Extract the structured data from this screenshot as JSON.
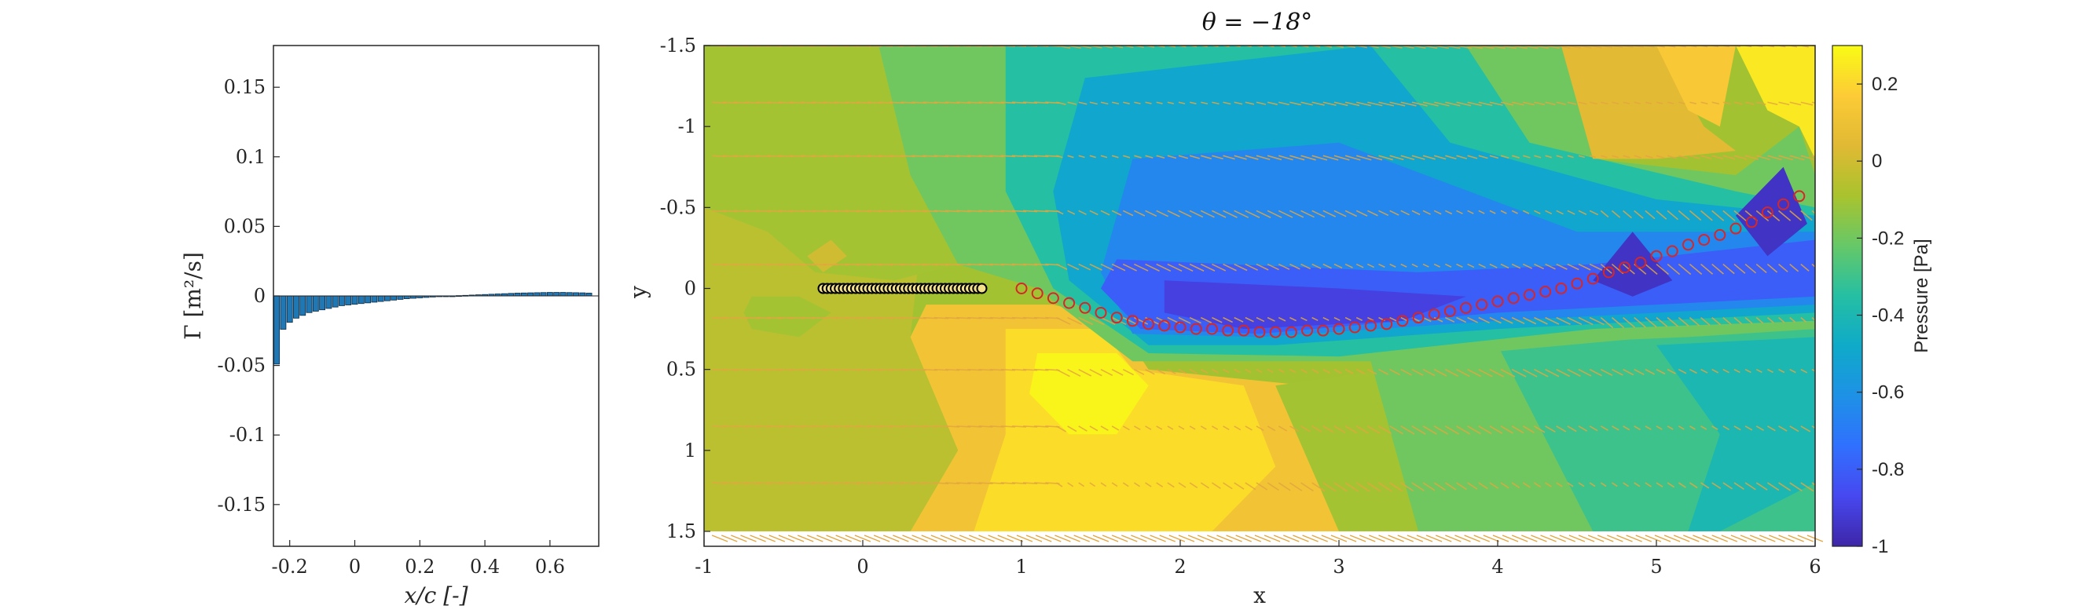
{
  "chart_data": [
    {
      "type": "bar",
      "xlabel": "x/c [-]",
      "ylabel": "Γ [m²/s]",
      "xlim": [
        -0.25,
        0.75
      ],
      "ylim": [
        -0.18,
        0.18
      ],
      "xticks": [
        "-0.2",
        "0",
        "0.2",
        "0.4",
        "0.6"
      ],
      "xtick_values": [
        -0.2,
        0,
        0.2,
        0.4,
        0.6
      ],
      "yticks": [
        "0.15",
        "0.1",
        "0.05",
        "0",
        "-0.05",
        "-0.1",
        "-0.15"
      ],
      "ytick_values": [
        0.15,
        0.1,
        0.05,
        0,
        -0.05,
        -0.1,
        -0.15
      ],
      "bar_color": "#1f77b4",
      "x": [
        -0.24,
        -0.22,
        -0.2,
        -0.18,
        -0.16,
        -0.14,
        -0.12,
        -0.1,
        -0.08,
        -0.06,
        -0.04,
        -0.02,
        0,
        0.02,
        0.04,
        0.06,
        0.08,
        0.1,
        0.12,
        0.14,
        0.16,
        0.18,
        0.2,
        0.22,
        0.24,
        0.26,
        0.28,
        0.3,
        0.32,
        0.34,
        0.36,
        0.38,
        0.4,
        0.42,
        0.44,
        0.46,
        0.48,
        0.5,
        0.52,
        0.54,
        0.56,
        0.58,
        0.6,
        0.62,
        0.64,
        0.66,
        0.68,
        0.7,
        0.72
      ],
      "values": [
        -0.049,
        -0.024,
        -0.019,
        -0.016,
        -0.014,
        -0.012,
        -0.011,
        -0.01,
        -0.009,
        -0.008,
        -0.007,
        -0.0065,
        -0.006,
        -0.0055,
        -0.005,
        -0.0045,
        -0.004,
        -0.0035,
        -0.003,
        -0.0025,
        -0.002,
        -0.0017,
        -0.0014,
        -0.0011,
        -0.0008,
        -0.0005,
        -0.0002,
        0,
        0.0002,
        0.0004,
        0.0006,
        0.0008,
        0.001,
        0.0012,
        0.0014,
        0.0016,
        0.0018,
        0.002,
        0.0021,
        0.0022,
        0.0023,
        0.0024,
        0.0025,
        0.0025,
        0.0025,
        0.0024,
        0.0023,
        0.0022,
        0.002
      ]
    },
    {
      "type": "contour",
      "title": "θ = −18°",
      "xlabel": "x",
      "ylabel": "y",
      "xlim": [
        -1,
        6
      ],
      "ylim": [
        -1.5,
        1.5
      ],
      "y_reversed": true,
      "xticks": [
        "-1",
        "0",
        "1",
        "2",
        "3",
        "4",
        "5",
        "6"
      ],
      "xtick_values": [
        -1,
        0,
        1,
        2,
        3,
        4,
        5,
        6
      ],
      "yticks": [
        "-1.5",
        "-1",
        "-0.5",
        "0",
        "0.5",
        "1",
        "1.5"
      ],
      "ytick_values": [
        -1.5,
        -1,
        -0.5,
        0,
        0.5,
        1,
        1.5
      ],
      "colorbar": {
        "label": "Pressure [Pa]",
        "range": [
          -1,
          0.3
        ],
        "ticks": [
          "0.2",
          "0",
          "-0.2",
          "-0.4",
          "-0.6",
          "-0.8",
          "-1"
        ],
        "tick_values": [
          0.2,
          0,
          -0.2,
          -0.4,
          -0.6,
          -0.8,
          -1
        ]
      },
      "plate": {
        "x_start": -0.25,
        "x_end": 0.75,
        "y": 0,
        "marker_color": "#000000",
        "fill_color": "#f2e08a"
      },
      "wake_markers": {
        "color": "#d62728",
        "x": [
          1.0,
          1.1,
          1.2,
          1.3,
          1.4,
          1.5,
          1.6,
          1.7,
          1.8,
          1.9,
          2.0,
          2.1,
          2.2,
          2.3,
          2.4,
          2.5,
          2.6,
          2.7,
          2.8,
          2.9,
          3.0,
          3.1,
          3.2,
          3.3,
          3.4,
          3.5,
          3.6,
          3.7,
          3.8,
          3.9,
          4.0,
          4.1,
          4.2,
          4.3,
          4.4,
          4.5,
          4.6,
          4.7,
          4.8,
          4.9,
          5.0,
          5.1,
          5.2,
          5.3,
          5.4,
          5.5,
          5.6,
          5.7,
          5.8,
          5.9
        ],
        "y": [
          0.0,
          0.03,
          0.06,
          0.09,
          0.12,
          0.15,
          0.18,
          0.2,
          0.22,
          0.23,
          0.24,
          0.25,
          0.25,
          0.26,
          0.26,
          0.27,
          0.27,
          0.27,
          0.26,
          0.26,
          0.25,
          0.24,
          0.23,
          0.22,
          0.2,
          0.18,
          0.16,
          0.14,
          0.12,
          0.1,
          0.08,
          0.06,
          0.04,
          0.02,
          0.0,
          -0.03,
          -0.06,
          -0.1,
          -0.13,
          -0.16,
          -0.2,
          -0.23,
          -0.27,
          -0.3,
          -0.33,
          -0.37,
          -0.41,
          -0.47,
          -0.52,
          -0.57
        ]
      },
      "field_regions": [
        {
          "level": -0.05,
          "polygon": [
            [
              -1,
              -1.5
            ],
            [
              0.1,
              -1.5
            ],
            [
              0.4,
              -0.6
            ],
            [
              0.3,
              0.3
            ],
            [
              0.6,
              1.0
            ],
            [
              0.3,
              1.5
            ],
            [
              -1,
              1.5
            ]
          ]
        },
        {
          "level": -0.1,
          "polygon": [
            [
              -1,
              -1.5
            ],
            [
              0.1,
              -1.5
            ],
            [
              0.3,
              -0.7
            ],
            [
              0.6,
              -0.15
            ],
            [
              0.2,
              -0.05
            ],
            [
              -0.3,
              -0.1
            ],
            [
              -0.6,
              -0.35
            ],
            [
              -1,
              -0.5
            ]
          ]
        },
        {
          "level": -0.1,
          "polygon": [
            [
              -0.7,
              0.05
            ],
            [
              -0.4,
              0.05
            ],
            [
              -0.2,
              0.15
            ],
            [
              -0.4,
              0.3
            ],
            [
              -0.7,
              0.25
            ],
            [
              -0.75,
              0.15
            ]
          ]
        },
        {
          "level": 0.0,
          "polygon": [
            [
              -0.35,
              -0.2
            ],
            [
              -0.2,
              -0.3
            ],
            [
              -0.1,
              -0.2
            ],
            [
              -0.25,
              -0.1
            ]
          ]
        },
        {
          "level": 0.12,
          "polygon": [
            [
              0.4,
              0.1
            ],
            [
              1.2,
              0.1
            ],
            [
              1.6,
              0.2
            ],
            [
              1.8,
              0.5
            ],
            [
              2.8,
              0.6
            ],
            [
              3.1,
              1.5
            ],
            [
              0.3,
              1.5
            ],
            [
              0.6,
              1.0
            ],
            [
              0.3,
              0.3
            ]
          ]
        },
        {
          "level": 0.22,
          "polygon": [
            [
              0.9,
              0.25
            ],
            [
              1.5,
              0.25
            ],
            [
              1.7,
              0.5
            ],
            [
              2.4,
              0.6
            ],
            [
              2.6,
              1.1
            ],
            [
              2.2,
              1.5
            ],
            [
              0.7,
              1.5
            ],
            [
              0.9,
              0.9
            ]
          ]
        },
        {
          "level": 0.28,
          "polygon": [
            [
              1.1,
              0.4
            ],
            [
              1.6,
              0.4
            ],
            [
              1.8,
              0.6
            ],
            [
              1.6,
              0.9
            ],
            [
              1.3,
              0.9
            ],
            [
              1.05,
              0.65
            ]
          ]
        },
        {
          "level": -0.1,
          "polygon": [
            [
              2.6,
              0.6
            ],
            [
              3.3,
              0.5
            ],
            [
              3.6,
              1.5
            ],
            [
              3.0,
              1.5
            ]
          ]
        },
        {
          "level": -0.2,
          "polygon": [
            [
              3.2,
              0.45
            ],
            [
              4.2,
              0.3
            ],
            [
              5.0,
              0.3
            ],
            [
              6,
              0.2
            ],
            [
              6,
              1.5
            ],
            [
              3.5,
              1.5
            ]
          ]
        },
        {
          "level": -0.3,
          "polygon": [
            [
              4.0,
              0.35
            ],
            [
              5.2,
              0.3
            ],
            [
              6,
              0.25
            ],
            [
              6,
              1.5
            ],
            [
              4.6,
              1.5
            ]
          ]
        },
        {
          "level": -0.4,
          "polygon": [
            [
              5.0,
              0.35
            ],
            [
              6,
              0.3
            ],
            [
              6,
              1.2
            ],
            [
              5.4,
              1.5
            ],
            [
              5.2,
              1.5
            ],
            [
              5.4,
              0.9
            ]
          ]
        },
        {
          "level": -0.2,
          "polygon": [
            [
              0.1,
              -1.5
            ],
            [
              4.4,
              -1.5
            ],
            [
              4.6,
              -0.8
            ],
            [
              5.5,
              -0.7
            ],
            [
              5.9,
              -1.0
            ],
            [
              6,
              -0.7
            ],
            [
              6,
              0.25
            ],
            [
              5.0,
              0.3
            ],
            [
              3.3,
              0.45
            ],
            [
              1.7,
              0.45
            ],
            [
              1.1,
              0.0
            ],
            [
              0.6,
              -0.15
            ],
            [
              0.3,
              -0.7
            ]
          ]
        },
        {
          "level": -0.35,
          "polygon": [
            [
              0.9,
              -1.5
            ],
            [
              3.8,
              -1.5
            ],
            [
              4.2,
              -0.9
            ],
            [
              5.5,
              -0.6
            ],
            [
              6,
              -0.5
            ],
            [
              6,
              0.2
            ],
            [
              4.6,
              0.25
            ],
            [
              3.0,
              0.42
            ],
            [
              1.8,
              0.4
            ],
            [
              1.2,
              0.0
            ],
            [
              0.9,
              -0.6
            ]
          ]
        },
        {
          "level": -0.5,
          "polygon": [
            [
              1.4,
              -1.3
            ],
            [
              3.2,
              -1.5
            ],
            [
              3.7,
              -0.9
            ],
            [
              5.0,
              -0.55
            ],
            [
              6,
              -0.45
            ],
            [
              6,
              0.15
            ],
            [
              4.0,
              0.25
            ],
            [
              2.6,
              0.35
            ],
            [
              1.8,
              0.35
            ],
            [
              1.3,
              -0.05
            ],
            [
              1.2,
              -0.6
            ]
          ]
        },
        {
          "level": -0.65,
          "polygon": [
            [
              1.7,
              -0.8
            ],
            [
              3.0,
              -0.9
            ],
            [
              4.5,
              -0.35
            ],
            [
              6,
              -0.35
            ],
            [
              6,
              0.1
            ],
            [
              4.0,
              0.2
            ],
            [
              2.5,
              0.3
            ],
            [
              1.7,
              0.28
            ],
            [
              1.5,
              -0.1
            ]
          ]
        },
        {
          "level": -0.8,
          "polygon": [
            [
              1.6,
              -0.18
            ],
            [
              3.5,
              -0.1
            ],
            [
              4.6,
              -0.15
            ],
            [
              6,
              -0.3
            ],
            [
              6,
              0.05
            ],
            [
              4.0,
              0.15
            ],
            [
              2.5,
              0.28
            ],
            [
              1.75,
              0.25
            ],
            [
              1.5,
              0.0
            ]
          ]
        },
        {
          "level": -0.9,
          "polygon": [
            [
              1.9,
              -0.05
            ],
            [
              3.0,
              0.0
            ],
            [
              3.8,
              0.05
            ],
            [
              3.4,
              0.2
            ],
            [
              2.4,
              0.25
            ],
            [
              1.9,
              0.15
            ]
          ]
        },
        {
          "level": -0.95,
          "polygon": [
            [
              4.6,
              -0.05
            ],
            [
              4.85,
              -0.35
            ],
            [
              5.1,
              -0.05
            ],
            [
              4.85,
              0.05
            ]
          ]
        },
        {
          "level": -0.95,
          "polygon": [
            [
              5.5,
              -0.45
            ],
            [
              5.8,
              -0.75
            ],
            [
              5.95,
              -0.4
            ],
            [
              5.7,
              -0.2
            ]
          ]
        },
        {
          "level": 0.05,
          "polygon": [
            [
              4.4,
              -1.5
            ],
            [
              5.0,
              -1.5
            ],
            [
              5.3,
              -1.0
            ],
            [
              5.5,
              -0.85
            ],
            [
              5.0,
              -0.8
            ],
            [
              4.6,
              -0.8
            ]
          ]
        },
        {
          "level": 0.15,
          "polygon": [
            [
              5.0,
              -1.5
            ],
            [
              5.5,
              -1.5
            ],
            [
              5.4,
              -1.0
            ],
            [
              5.2,
              -1.1
            ]
          ]
        },
        {
          "level": 0.25,
          "polygon": [
            [
              5.5,
              -1.5
            ],
            [
              6,
              -1.5
            ],
            [
              6,
              -0.8
            ],
            [
              5.9,
              -1.0
            ],
            [
              5.7,
              -1.1
            ]
          ]
        }
      ]
    }
  ]
}
